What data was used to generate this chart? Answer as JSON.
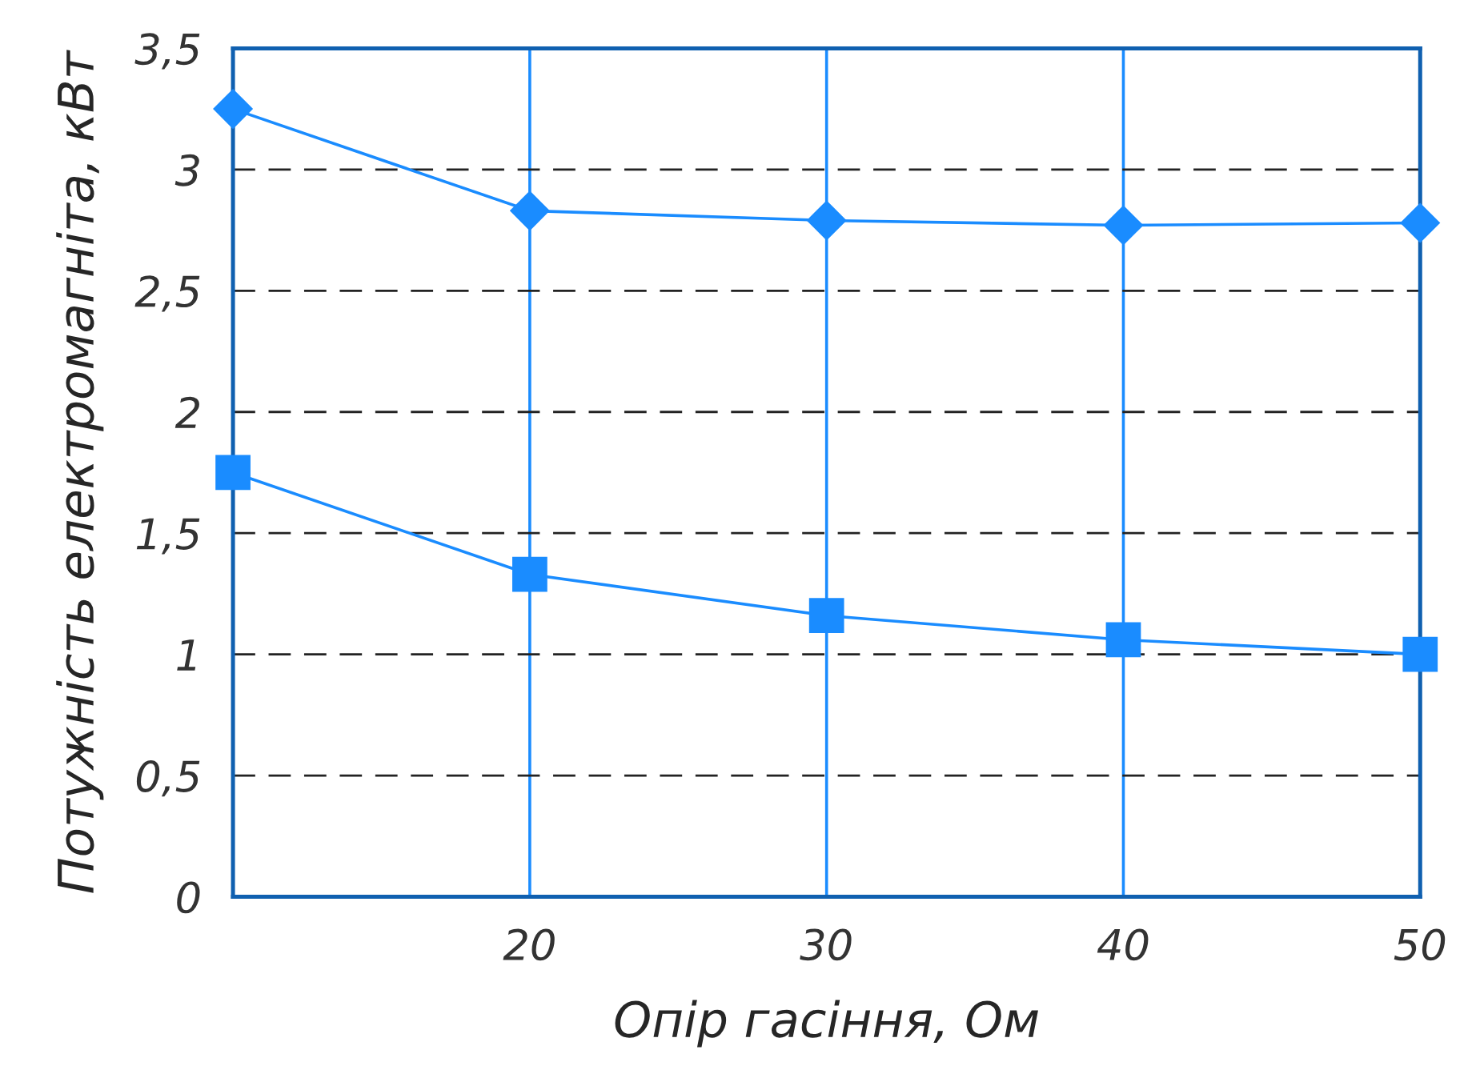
{
  "chart_data": {
    "type": "line",
    "xlabel": "Опір гасіння, Ом",
    "ylabel": "Потужність електромагніта, кВт",
    "categories": [
      null,
      "20",
      "30",
      "40",
      "50"
    ],
    "series": [
      {
        "color": "#1a8cff",
        "marker": "diamond",
        "values": [
          3.25,
          2.83,
          2.79,
          2.77,
          2.78
        ]
      },
      {
        "color": "#1a8cff",
        "marker": "square",
        "values": [
          1.75,
          1.33,
          1.16,
          1.06,
          1.0
        ]
      }
    ],
    "ylim": [
      0,
      3.5
    ],
    "yticks": [
      {
        "value": 0,
        "label": "0"
      },
      {
        "value": 0.5,
        "label": "0,5"
      },
      {
        "value": 1,
        "label": "1"
      },
      {
        "value": 1.5,
        "label": "1,5"
      },
      {
        "value": 2,
        "label": "2"
      },
      {
        "value": 2.5,
        "label": "2,5"
      },
      {
        "value": 3,
        "label": "3"
      },
      {
        "value": 3.5,
        "label": "3,5"
      }
    ],
    "grid": true,
    "line_style": "solid"
  }
}
